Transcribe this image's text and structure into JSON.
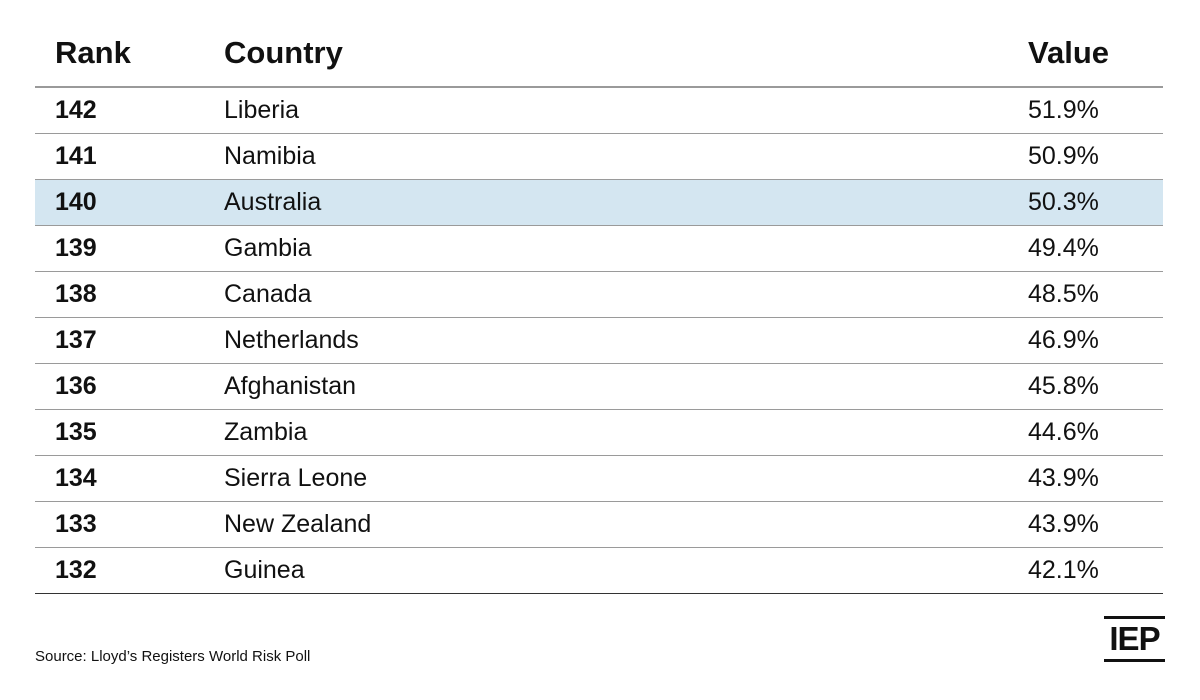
{
  "header": {
    "rank": "Rank",
    "country": "Country",
    "value": "Value"
  },
  "table": {
    "rows": [
      [
        "142",
        "Liberia",
        "51.9%"
      ],
      [
        "141",
        "Namibia",
        "50.9%"
      ],
      [
        "140",
        "Australia",
        "50.3%"
      ],
      [
        "139",
        "Gambia",
        "49.4%"
      ],
      [
        "138",
        "Canada",
        "48.5%"
      ],
      [
        "137",
        "Netherlands",
        "46.9%"
      ],
      [
        "136",
        "Afghanistan",
        "45.8%"
      ],
      [
        "135",
        "Zambia",
        "44.6%"
      ],
      [
        "134",
        "Sierra Leone",
        "43.9%"
      ],
      [
        "133",
        "New Zealand",
        "43.9%"
      ],
      [
        "132",
        "Guinea",
        "42.1%"
      ]
    ],
    "highlight_row": 2,
    "highlight_color": "#d4e6f1"
  },
  "footer": {
    "source": "Source: Lloyd’s Registers World Risk Poll",
    "logo": "IEP"
  }
}
